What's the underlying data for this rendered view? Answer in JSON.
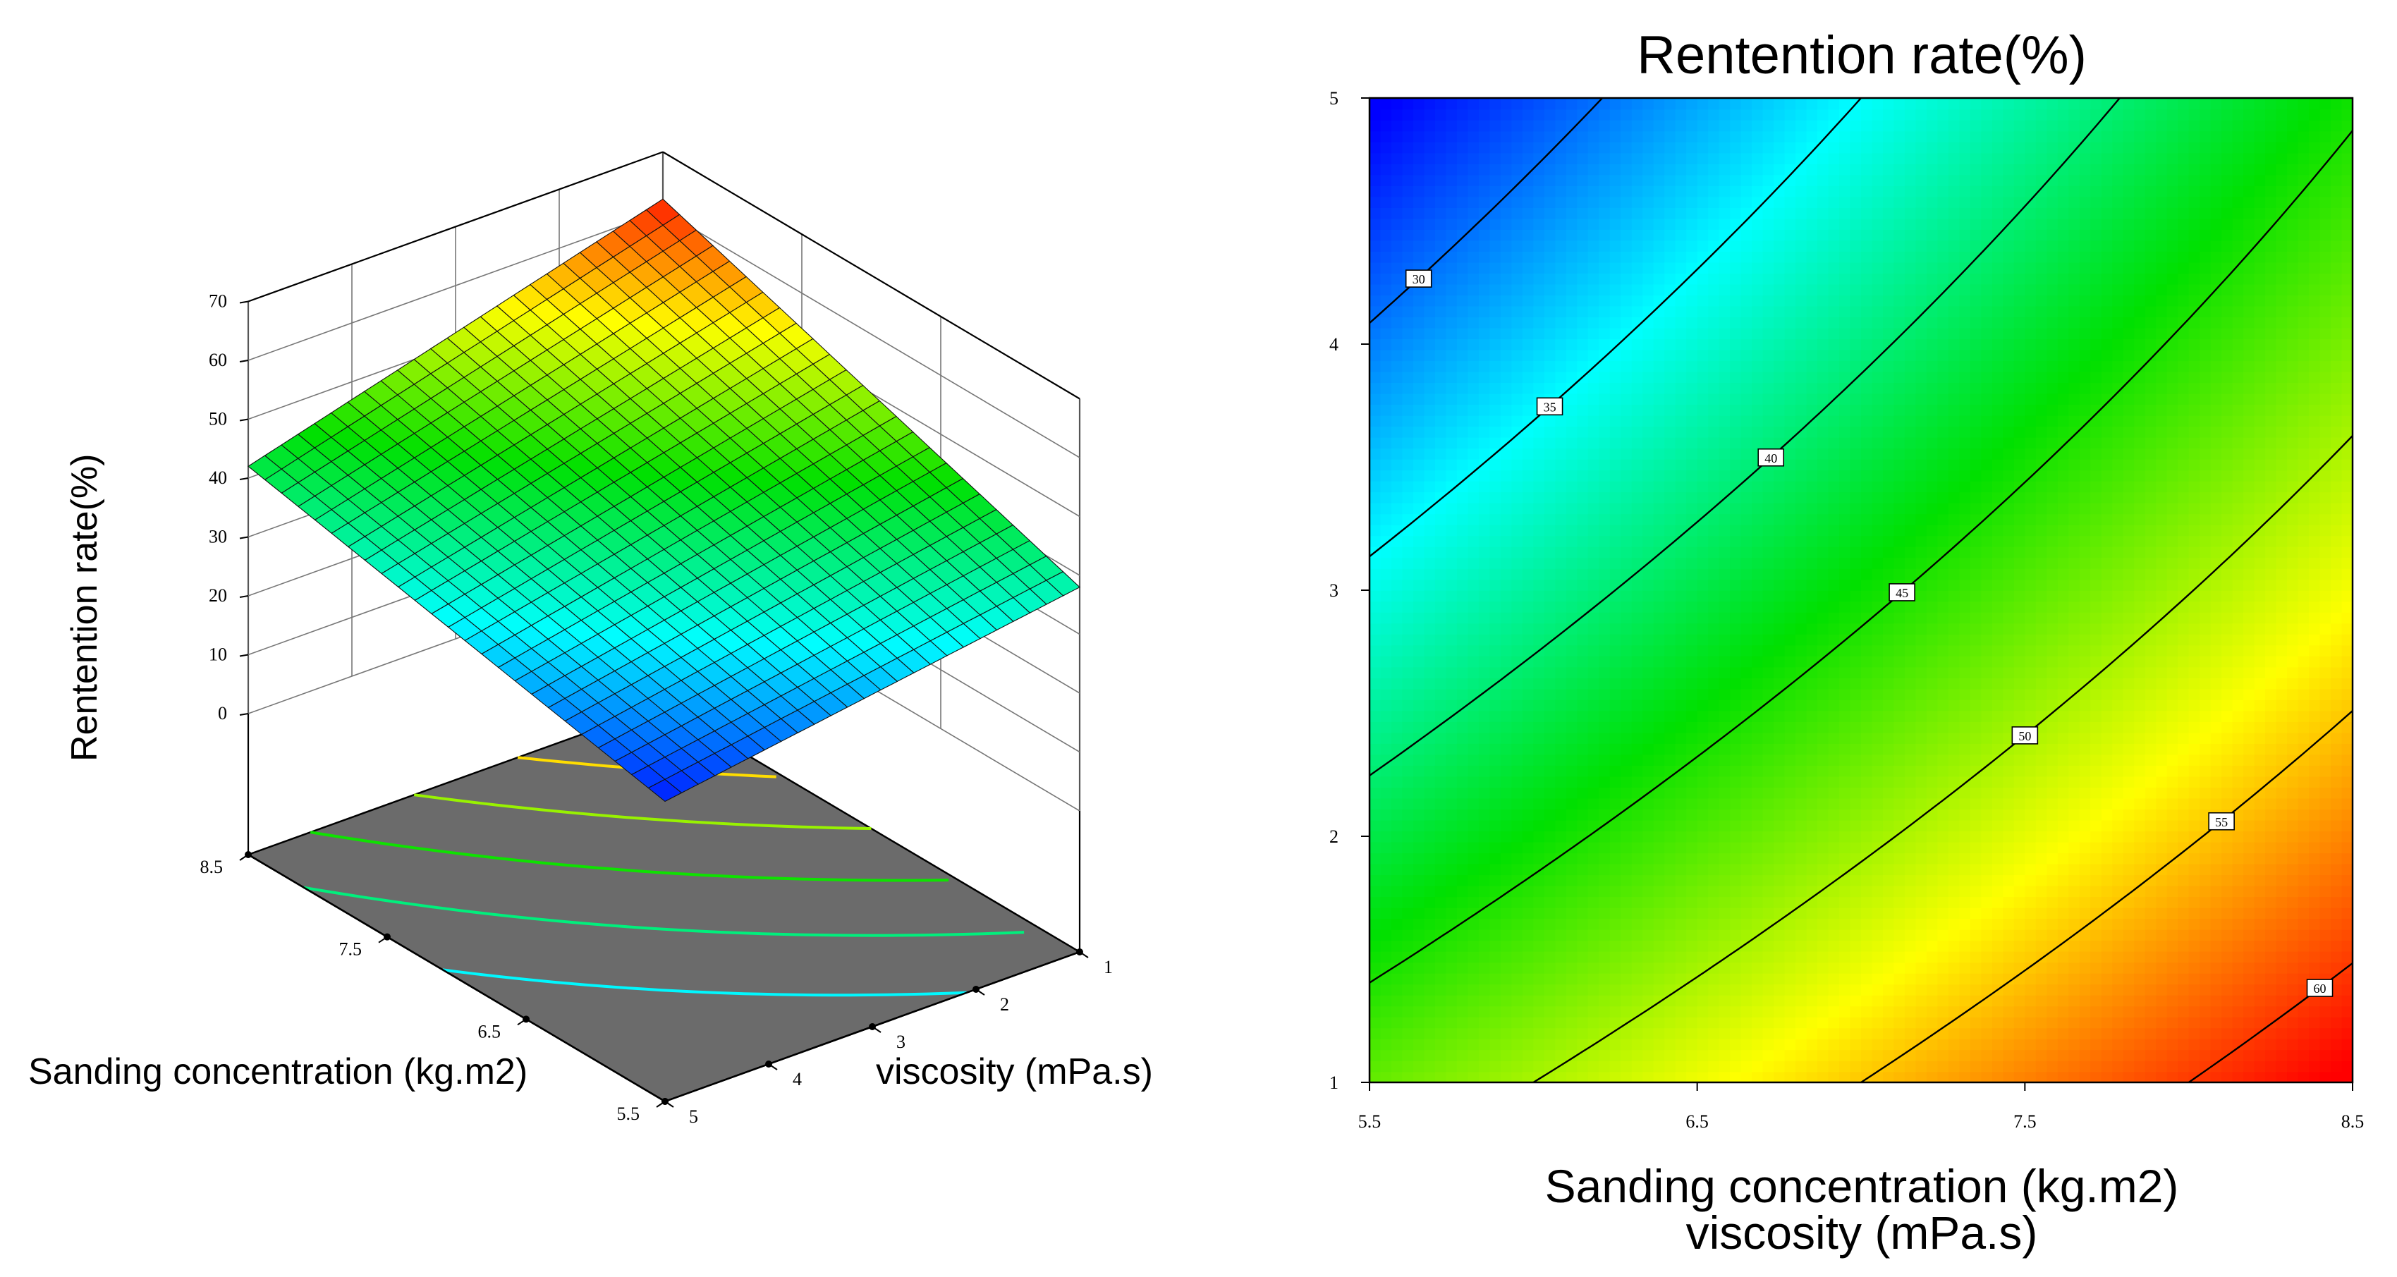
{
  "chart_data": [
    {
      "type": "surface",
      "zlabel": "Rentention rate(%)",
      "xlabel": "Sanding concentration (kg.m2)",
      "ylabel": "viscosity (mPa.s)",
      "x_ticks": [
        "8.5",
        "7.5",
        "6.5",
        "5.5"
      ],
      "y_ticks": [
        "1",
        "2",
        "3",
        "4",
        "5"
      ],
      "z_ticks": [
        "70",
        "60",
        "50",
        "40",
        "30",
        "20",
        "10",
        "0"
      ],
      "xlim": [
        5.5,
        8.5
      ],
      "ylim": [
        1,
        5
      ],
      "zlim": [
        0,
        70
      ],
      "corner_values": [
        {
          "x": 8.5,
          "y": 1,
          "z": 62
        },
        {
          "x": 8.5,
          "y": 5,
          "z": 42
        },
        {
          "x": 5.5,
          "y": 1,
          "z": 38
        },
        {
          "x": 5.5,
          "y": 5,
          "z": 27
        }
      ],
      "floor_contours": [
        35,
        40,
        45,
        50,
        55
      ],
      "colormap": [
        "#0000ff",
        "#00ffff",
        "#00e000",
        "#ffff00",
        "#ff0000"
      ]
    },
    {
      "type": "contour",
      "title": "Rentention rate(%)",
      "xlabel": "Sanding concentration (kg.m2)",
      "ylabel": "viscosity (mPa.s)",
      "x_ticks": [
        "5.5",
        "6.5",
        "7.5",
        "8.5"
      ],
      "y_ticks": [
        "1",
        "2",
        "3",
        "4",
        "5"
      ],
      "xlim": [
        5.5,
        8.5
      ],
      "ylim": [
        1,
        5
      ],
      "levels": [
        "30",
        "35",
        "40",
        "45",
        "50",
        "55",
        "60"
      ],
      "colormap": [
        "#0000ff",
        "#00ffff",
        "#00e000",
        "#ffff00",
        "#ff0000"
      ]
    }
  ]
}
